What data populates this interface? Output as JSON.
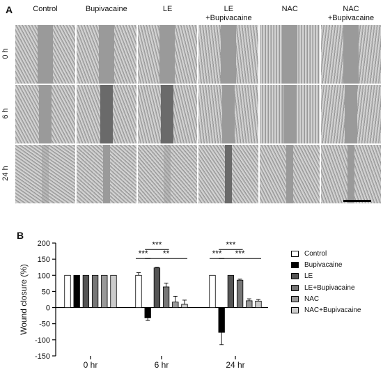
{
  "panel_a": {
    "label": "A",
    "columns": [
      "Control",
      "Bupivacaine",
      "LE",
      "LE\n+Bupivacaine",
      "NAC",
      "NAC\n+Bupivacaine"
    ],
    "rows": [
      "0 h",
      "6 h",
      "24 h"
    ]
  },
  "panel_b": {
    "label": "B"
  },
  "chart_data": {
    "type": "bar",
    "categories": [
      "0 hr",
      "6 hr",
      "24 hr"
    ],
    "series": [
      {
        "name": "Control",
        "values": [
          100,
          100,
          100
        ],
        "errors": [
          0,
          8,
          0
        ],
        "color": "#ffffff"
      },
      {
        "name": "Bupivacaine",
        "values": [
          100,
          -32,
          -77
        ],
        "errors": [
          0,
          8,
          38
        ],
        "color": "#000000"
      },
      {
        "name": "LE",
        "values": [
          100,
          123,
          100
        ],
        "errors": [
          0,
          2,
          0
        ],
        "color": "#555555"
      },
      {
        "name": "LE+Bupivacaine",
        "values": [
          100,
          64,
          85
        ],
        "errors": [
          0,
          12,
          3
        ],
        "color": "#777777"
      },
      {
        "name": "NAC",
        "values": [
          100,
          17,
          21
        ],
        "errors": [
          0,
          18,
          6
        ],
        "color": "#999999"
      },
      {
        "name": "NAC+Bupivacaine",
        "values": [
          100,
          10,
          20
        ],
        "errors": [
          0,
          13,
          5
        ],
        "color": "#cccccc"
      }
    ],
    "ylabel": "Wound closure (%)",
    "xlabel": "",
    "ylim": [
      -150,
      200
    ],
    "yticks": [
      200,
      150,
      100,
      50,
      0,
      -50,
      -100,
      -150
    ],
    "annotations": [
      {
        "text": "***",
        "category": "6 hr",
        "from": "Control",
        "to": "Bupivacaine",
        "level": 1
      },
      {
        "text": "***",
        "category": "6 hr",
        "from": "Bupivacaine",
        "to": "LE+Bupivacaine",
        "level": 2
      },
      {
        "text": "**",
        "category": "6 hr",
        "from": "Bupivacaine",
        "to": "NAC+Bupivacaine",
        "level": 1
      },
      {
        "text": "***",
        "category": "24 hr",
        "from": "Control",
        "to": "Bupivacaine",
        "level": 1
      },
      {
        "text": "***",
        "category": "24 hr",
        "from": "Bupivacaine",
        "to": "LE+Bupivacaine",
        "level": 2
      },
      {
        "text": "***",
        "category": "24 hr",
        "from": "Bupivacaine",
        "to": "NAC+Bupivacaine",
        "level": 1
      }
    ]
  }
}
